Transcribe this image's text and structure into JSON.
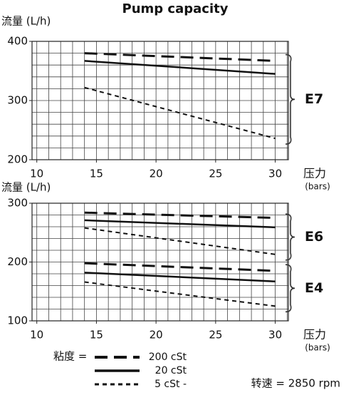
{
  "title": "Pump capacity",
  "chart_data": [
    {
      "type": "line",
      "y_label": "流量 (L/h)",
      "x_label": "压力",
      "x_unit": "(bars)",
      "x": [
        14,
        30
      ],
      "xlim": [
        9.6,
        31.1
      ],
      "xticks": [
        10,
        15,
        20,
        25,
        30
      ],
      "ylim": [
        200,
        400
      ],
      "yticks": [
        200,
        300,
        400
      ],
      "xgrid_step": 1,
      "ygrid_step": 20,
      "color": "#111111",
      "groups": [
        {
          "label": "E7",
          "series": [
            {
              "dash": "18 9",
              "width": 3,
              "values": [
                380,
                367
              ]
            },
            {
              "dash": "none",
              "width": 2.5,
              "values": [
                367,
                345
              ]
            },
            {
              "dash": "6 5",
              "width": 2,
              "values": [
                322,
                236
              ]
            }
          ]
        }
      ]
    },
    {
      "type": "line",
      "y_label": "流量 (L/h)",
      "x_label": "压力",
      "x_unit": "(bars)",
      "x": [
        14,
        30
      ],
      "xlim": [
        9.6,
        31.1
      ],
      "xticks": [
        10,
        15,
        20,
        25,
        30
      ],
      "ylim": [
        100,
        300
      ],
      "yticks": [
        100,
        200,
        300
      ],
      "xgrid_step": 1,
      "ygrid_step": 20,
      "color": "#111111",
      "groups": [
        {
          "label": "E6",
          "series": [
            {
              "dash": "18 9",
              "width": 3,
              "values": [
                284,
                275
              ]
            },
            {
              "dash": "none",
              "width": 2.5,
              "values": [
                271,
                259
              ]
            },
            {
              "dash": "6 5",
              "width": 2,
              "values": [
                258,
                213
              ]
            }
          ]
        },
        {
          "label": "E4",
          "series": [
            {
              "dash": "18 9",
              "width": 3,
              "values": [
                198,
                185
              ]
            },
            {
              "dash": "none",
              "width": 2.5,
              "values": [
                182,
                167
              ]
            },
            {
              "dash": "6 5",
              "width": 2,
              "values": [
                166,
                125
              ]
            }
          ]
        }
      ]
    }
  ],
  "legend": {
    "title": "粘度 =",
    "items": [
      {
        "name": "200 cSt",
        "dash": "18 9",
        "width": 3
      },
      {
        "name": "20 cSt",
        "dash": "none",
        "width": 2.5
      },
      {
        "name": "5 cSt -",
        "dash": "6 5",
        "width": 2
      }
    ]
  },
  "speed": "转速 = 2850 rpm"
}
